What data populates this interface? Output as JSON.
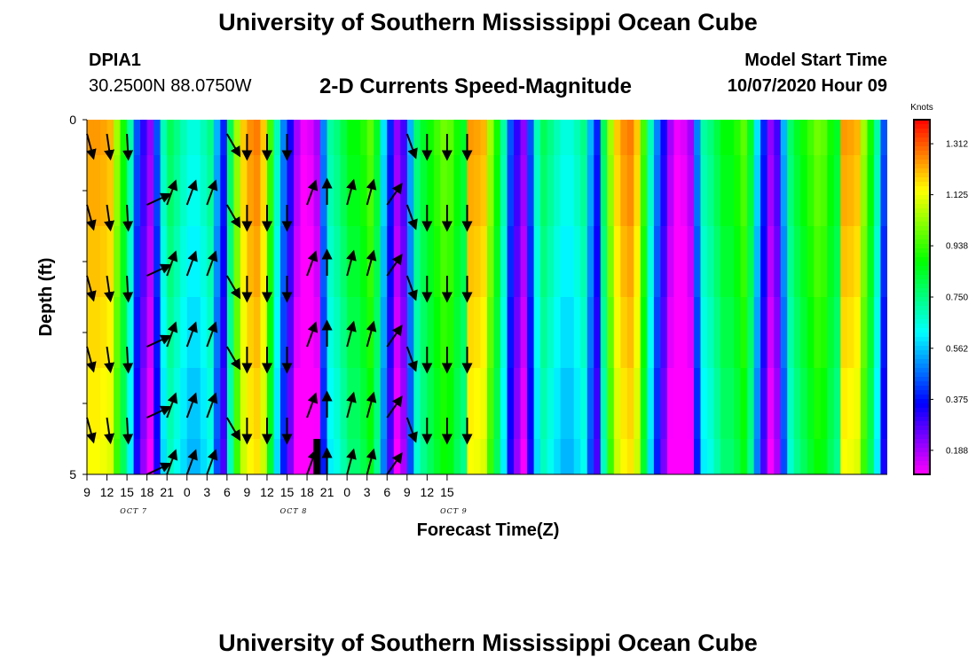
{
  "header": {
    "title": "University of Southern Mississippi Ocean Cube",
    "station_id": "DPIA1",
    "station_coords": "30.2500N 88.0750W",
    "chart_title": "2-D Currents Speed-Magnitude",
    "model_label": "Model Start Time",
    "model_time": "10/07/2020 Hour 09"
  },
  "footer": {
    "title": "University of Southern Mississippi Ocean Cube"
  },
  "chart_data": {
    "type": "heatmap",
    "title": "2-D Currents Speed-Magnitude",
    "xlabel": "Forecast Time(Z)",
    "ylabel": "Depth (ft)",
    "x_hours": [
      9,
      10,
      11,
      12,
      13,
      14,
      15,
      16,
      17,
      18,
      19,
      20,
      21,
      22,
      23,
      24,
      25,
      26,
      27,
      28,
      29,
      30,
      31,
      32,
      33,
      34,
      35,
      36,
      37,
      38,
      39,
      40,
      41,
      42,
      43,
      44,
      45,
      46,
      47,
      48,
      49,
      50,
      51,
      52,
      53,
      54,
      55,
      56,
      57,
      58,
      59,
      60,
      61,
      62,
      63,
      64,
      65,
      66,
      67,
      68,
      69,
      70,
      71,
      72,
      73,
      74,
      75,
      76,
      77,
      78,
      79,
      80,
      81,
      82,
      83,
      84,
      85,
      86,
      87,
      88,
      89,
      90,
      91,
      92,
      93,
      94,
      95,
      96,
      97,
      98,
      99,
      100,
      101,
      102,
      103,
      104,
      105,
      106,
      107,
      108,
      109,
      110,
      111,
      112,
      113,
      114,
      115,
      116,
      117,
      118,
      119,
      120,
      121,
      122,
      123,
      124,
      125,
      126,
      127,
      128
    ],
    "x_tick_labels": [
      "9",
      "12",
      "15",
      "18",
      "21",
      "0",
      "3",
      "6",
      "9",
      "12",
      "15",
      "18",
      "21",
      "0",
      "3",
      "6",
      "9",
      "12",
      "15"
    ],
    "date_labels": [
      {
        "label": "OCT 7",
        "at_hour": 16
      },
      {
        "label": "OCT 8",
        "at_hour": 40
      },
      {
        "label": "OCT 9",
        "at_hour": 64
      }
    ],
    "y_tick_labels": [
      "0",
      "5"
    ],
    "ylim": [
      0,
      5
    ],
    "depth_levels": [
      0.25,
      1.0,
      2.0,
      3.0,
      4.0,
      4.75
    ],
    "colorbar": {
      "label": "Knots",
      "min": 0.1,
      "max": 1.4,
      "tick_labels": [
        "1.312",
        "1.125",
        "0.938",
        "0.750",
        "0.562",
        "0.375",
        "0.188"
      ],
      "tick_values": [
        1.312,
        1.125,
        0.938,
        0.75,
        0.562,
        0.375,
        0.188
      ]
    },
    "speed_profile_knots": [
      [
        9,
        1.25
      ],
      [
        10,
        1.25
      ],
      [
        11,
        1.24
      ],
      [
        12,
        1.22
      ],
      [
        13,
        1.05
      ],
      [
        14,
        0.9
      ],
      [
        15,
        0.72
      ],
      [
        16,
        0.45
      ],
      [
        17,
        0.32
      ],
      [
        18,
        0.22
      ],
      [
        19,
        0.45
      ],
      [
        20,
        0.7
      ],
      [
        21,
        0.8
      ],
      [
        22,
        0.75
      ],
      [
        23,
        0.7
      ],
      [
        24,
        0.66
      ],
      [
        25,
        0.66
      ],
      [
        26,
        0.7
      ],
      [
        27,
        0.75
      ],
      [
        28,
        0.55
      ],
      [
        29,
        0.4
      ],
      [
        30,
        0.8
      ],
      [
        31,
        1.05
      ],
      [
        32,
        1.2
      ],
      [
        33,
        1.26
      ],
      [
        34,
        1.28
      ],
      [
        35,
        1.2
      ],
      [
        36,
        0.95
      ],
      [
        37,
        0.7
      ],
      [
        38,
        0.5
      ],
      [
        39,
        0.35
      ],
      [
        40,
        0.2
      ],
      [
        41,
        0.12
      ],
      [
        42,
        0.14
      ],
      [
        43,
        0.2
      ],
      [
        44,
        0.5
      ],
      [
        45,
        0.72
      ],
      [
        46,
        0.76
      ],
      [
        47,
        0.82
      ],
      [
        48,
        0.88
      ],
      [
        49,
        0.88
      ],
      [
        50,
        0.92
      ],
      [
        51,
        0.98
      ],
      [
        52,
        0.85
      ],
      [
        53,
        0.6
      ],
      [
        54,
        0.4
      ],
      [
        55,
        0.22
      ],
      [
        56,
        0.3
      ],
      [
        57,
        0.55
      ],
      [
        58,
        0.78
      ],
      [
        59,
        0.85
      ],
      [
        60,
        0.9
      ],
      [
        61,
        0.95
      ],
      [
        62,
        1.0
      ],
      [
        63,
        0.98
      ],
      [
        64,
        0.9
      ],
      [
        65,
        0.85
      ]
    ],
    "current_arrows": {
      "columns_hours": [
        9,
        12,
        15,
        18,
        21,
        24,
        27,
        30,
        33,
        36,
        39,
        42,
        45,
        48,
        51,
        54,
        57,
        60,
        63,
        66
      ],
      "direction_deg_from_north": [
        165,
        172,
        177,
        65,
        20,
        20,
        20,
        150,
        180,
        180,
        180,
        20,
        0,
        15,
        15,
        35,
        160,
        180,
        180,
        180
      ],
      "surface_note": "arrows at rows 0..5"
    },
    "marker": {
      "type": "current-time-bar",
      "at_hour": 43.5
    }
  }
}
